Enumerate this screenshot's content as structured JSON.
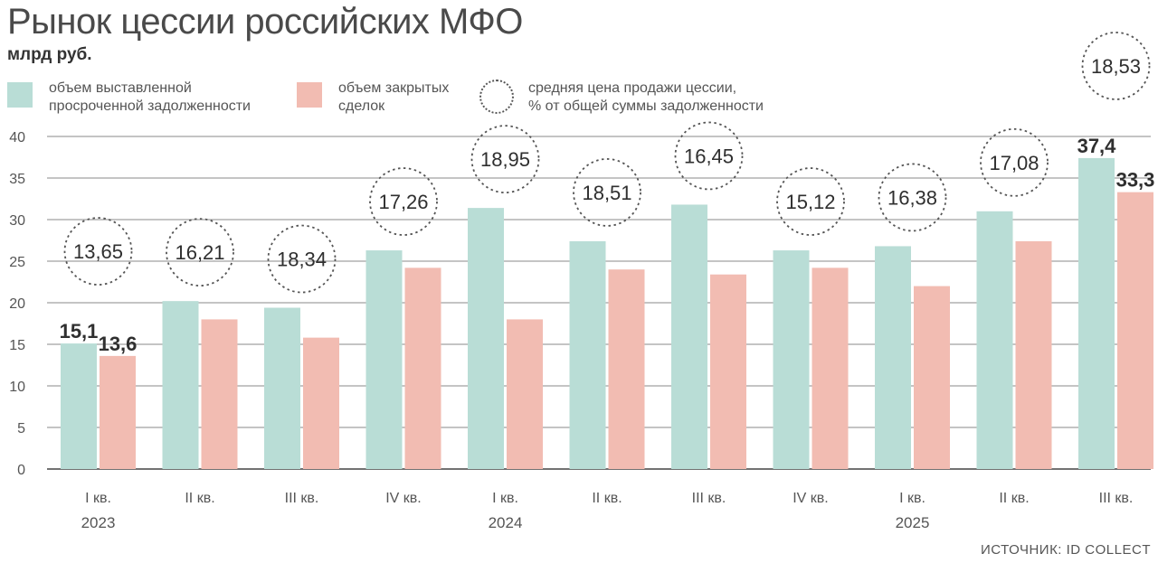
{
  "title": "Рынок цессии российских МФО",
  "subtitle": "млрд руб.",
  "legend": [
    {
      "label": "объем выставленной\nпросроченной задолженности",
      "color": "#b9ddd6",
      "kind": "swatch"
    },
    {
      "label": "объем закрытых\nсделок",
      "color": "#f2bcb2",
      "kind": "swatch"
    },
    {
      "label": "средняя цена продажи цессии,\n% от общей суммы задолженности",
      "kind": "circle"
    }
  ],
  "source": "ИСТОЧНИК: ID COLLECT",
  "chart_data": {
    "type": "bar",
    "categories": [
      "I кв.",
      "II кв.",
      "III кв.",
      "IV кв.",
      "I кв.",
      "II кв.",
      "III кв.",
      "IV кв.",
      "I кв.",
      "II кв.",
      "III кв."
    ],
    "years": [
      {
        "label": "2023",
        "index": 0
      },
      {
        "label": "2024",
        "index": 4
      },
      {
        "label": "2025",
        "index": 8
      }
    ],
    "series": [
      {
        "name": "объем выставленной просроченной задолженности",
        "color": "#b9ddd6",
        "values": [
          15.1,
          20.2,
          19.4,
          26.3,
          31.4,
          27.4,
          31.8,
          26.3,
          26.8,
          31.0,
          37.4
        ]
      },
      {
        "name": "объем закрытых сделок",
        "color": "#f2bcb2",
        "values": [
          13.6,
          18.0,
          15.8,
          24.2,
          18.0,
          24.0,
          23.4,
          24.2,
          22.0,
          27.4,
          33.3
        ]
      }
    ],
    "price_percent": [
      "13,65",
      "16,21",
      "18,34",
      "17,26",
      "18,95",
      "18,51",
      "16,45",
      "15,12",
      "16,38",
      "17,08",
      "18,53"
    ],
    "value_labels": [
      {
        "series": 0,
        "index": 0,
        "text": "15,1"
      },
      {
        "series": 1,
        "index": 0,
        "text": "13,6"
      },
      {
        "series": 0,
        "index": 10,
        "text": "37,4"
      },
      {
        "series": 1,
        "index": 10,
        "text": "33,3"
      }
    ],
    "ylim": [
      0,
      40
    ],
    "yticks": [
      0,
      5,
      10,
      15,
      20,
      25,
      30,
      35,
      40
    ],
    "grid": true
  }
}
